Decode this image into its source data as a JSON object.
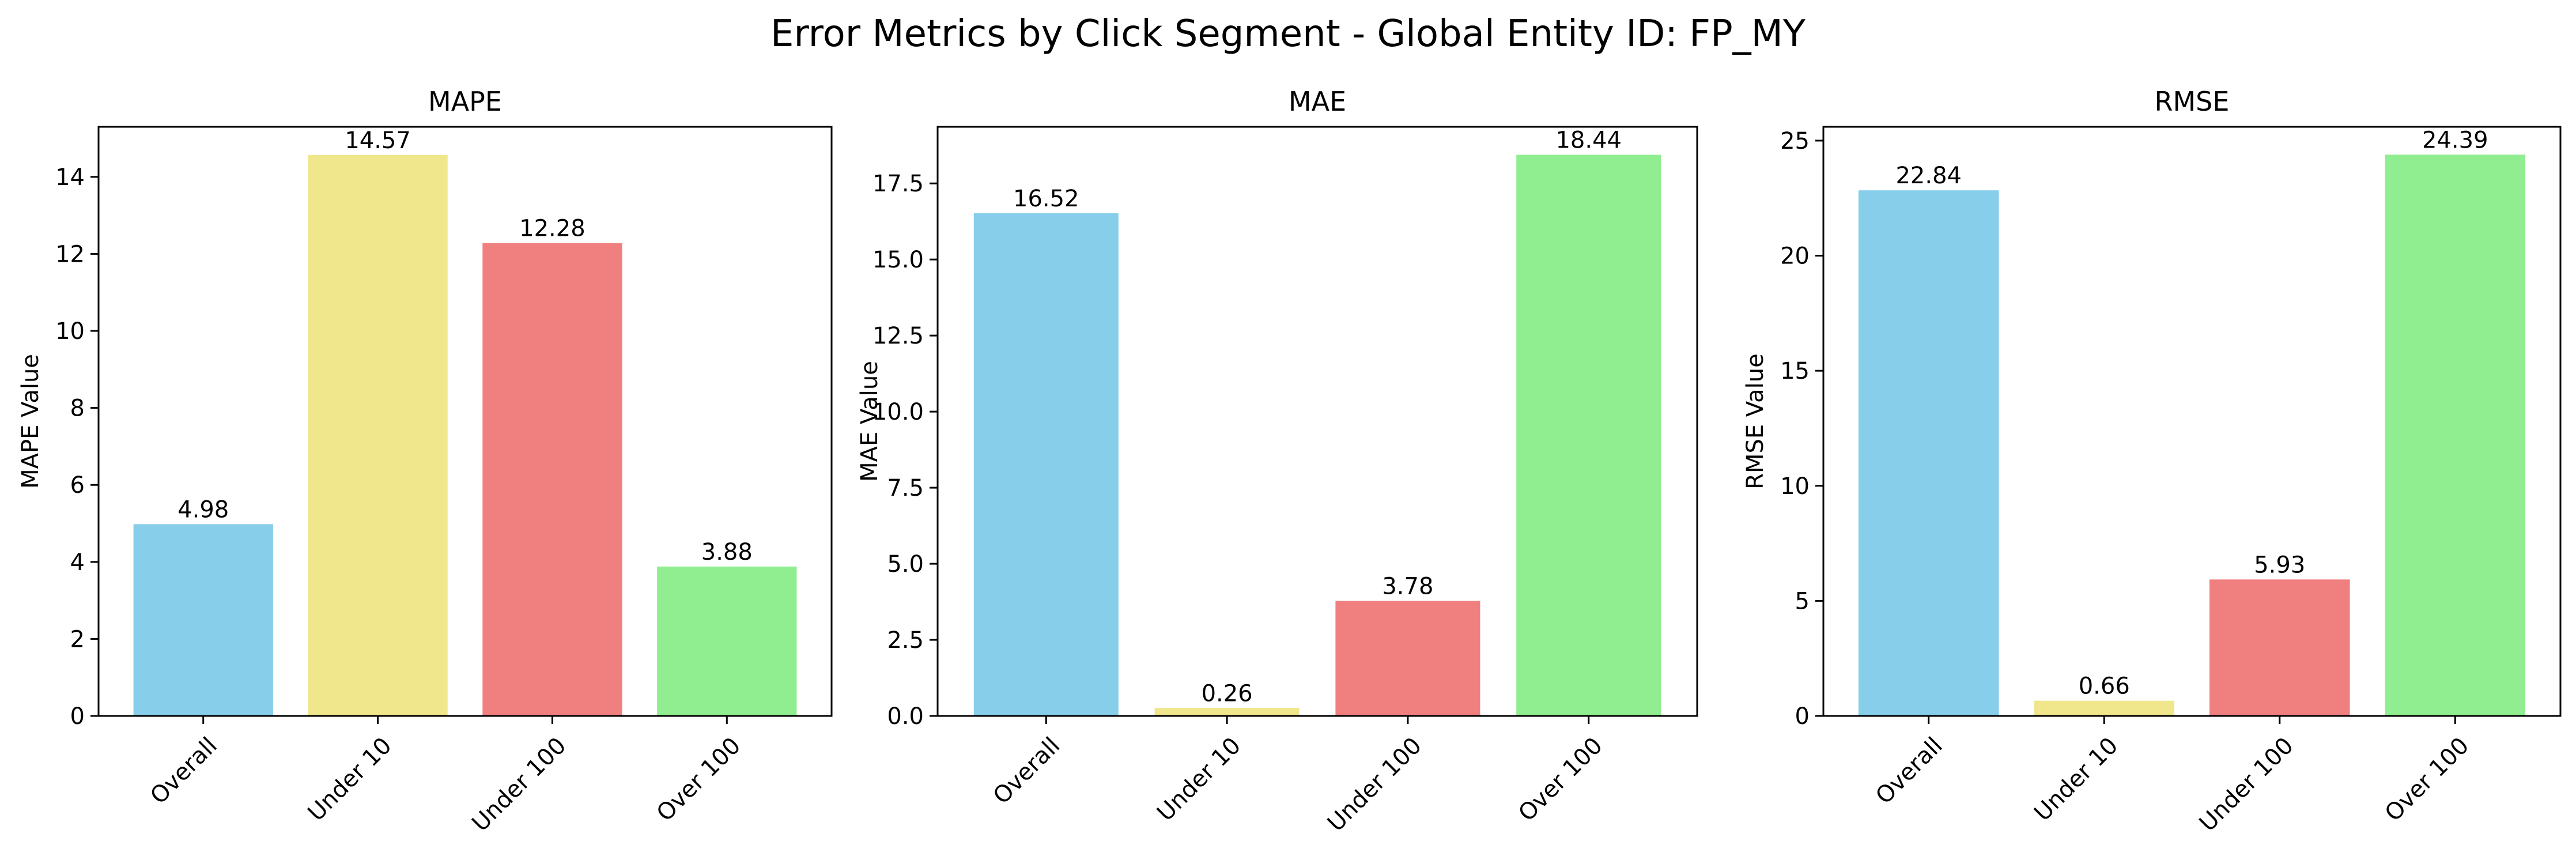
{
  "suptitle": "Error Metrics by Click Segment - Global Entity ID: FP_MY",
  "chart_data": [
    {
      "type": "bar",
      "title": "MAPE",
      "xlabel": "",
      "ylabel": "MAPE Value",
      "categories": [
        "Overall",
        "Under 10",
        "Under 100",
        "Over 100"
      ],
      "values": [
        4.98,
        14.57,
        12.28,
        3.88
      ],
      "value_labels": [
        "4.98",
        "14.57",
        "12.28",
        "3.88"
      ],
      "ylim": [
        0,
        15.3
      ],
      "yticks": [
        0,
        2,
        4,
        6,
        8,
        10,
        12,
        14
      ],
      "ytick_labels": [
        "0",
        "2",
        "4",
        "6",
        "8",
        "10",
        "12",
        "14"
      ],
      "grid": false,
      "colors": [
        "#87ceeb",
        "#f0e68c",
        "#f08080",
        "#90ee90"
      ]
    },
    {
      "type": "bar",
      "title": "MAE",
      "xlabel": "",
      "ylabel": "MAE Value",
      "categories": [
        "Overall",
        "Under 10",
        "Under 100",
        "Over 100"
      ],
      "values": [
        16.52,
        0.26,
        3.78,
        18.44
      ],
      "value_labels": [
        "16.52",
        "0.26",
        "3.78",
        "18.44"
      ],
      "ylim": [
        0,
        19.36
      ],
      "yticks": [
        0,
        2.5,
        5,
        7.5,
        10,
        12.5,
        15,
        17.5
      ],
      "ytick_labels": [
        "0.0",
        "2.5",
        "5.0",
        "7.5",
        "10.0",
        "12.5",
        "15.0",
        "17.5"
      ],
      "grid": false,
      "colors": [
        "#87ceeb",
        "#f0e68c",
        "#f08080",
        "#90ee90"
      ]
    },
    {
      "type": "bar",
      "title": "RMSE",
      "xlabel": "",
      "ylabel": "RMSE Value",
      "categories": [
        "Overall",
        "Under 10",
        "Under 100",
        "Over 100"
      ],
      "values": [
        22.84,
        0.66,
        5.93,
        24.39
      ],
      "value_labels": [
        "22.84",
        "0.66",
        "5.93",
        "24.39"
      ],
      "ylim": [
        0,
        25.6
      ],
      "yticks": [
        0,
        5,
        10,
        15,
        20,
        25
      ],
      "ytick_labels": [
        "0",
        "5",
        "10",
        "15",
        "20",
        "25"
      ],
      "grid": false,
      "colors": [
        "#87ceeb",
        "#f0e68c",
        "#f08080",
        "#90ee90"
      ]
    }
  ]
}
